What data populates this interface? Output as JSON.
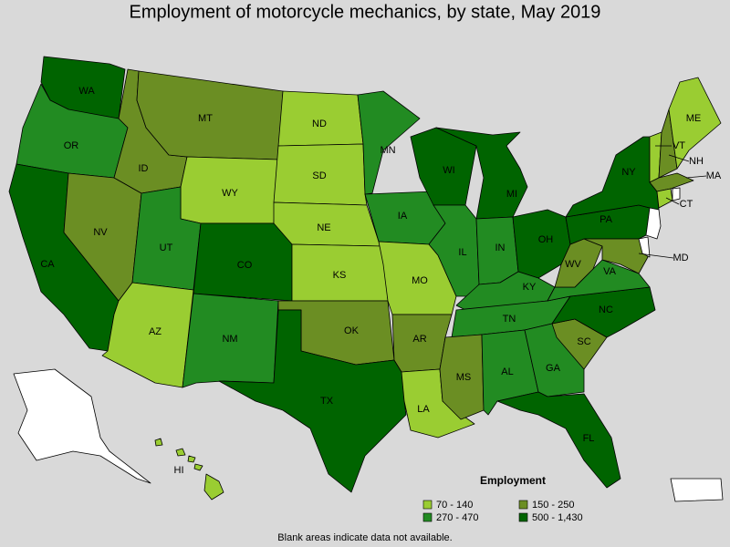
{
  "title": "Employment of motorcycle mechanics, by state, May 2019",
  "legend": {
    "title": "Employment",
    "bins": [
      {
        "label": "70 - 140",
        "color": "#9acd32"
      },
      {
        "label": "270 - 470",
        "color": "#228b22"
      },
      {
        "label": "150 - 250",
        "color": "#6b8e23"
      },
      {
        "label": "500 - 1,430",
        "color": "#006400"
      }
    ]
  },
  "regions": [
    {
      "label": "WA",
      "color": "#006400"
    },
    {
      "label": "OR",
      "color": "#228b22"
    },
    {
      "label": "CA",
      "color": "#006400"
    },
    {
      "label": "NV",
      "color": "#6b8e23"
    },
    {
      "label": "ID",
      "color": "#6b8e23"
    },
    {
      "label": "MT",
      "color": "#6b8e23"
    },
    {
      "label": "WY",
      "color": "#9acd32"
    },
    {
      "label": "UT",
      "color": "#228b22"
    },
    {
      "label": "AZ",
      "color": "#9acd32"
    },
    {
      "label": "CO",
      "color": "#006400"
    },
    {
      "label": "NM",
      "color": "#228b22"
    },
    {
      "label": "ND",
      "color": "#9acd32"
    },
    {
      "label": "SD",
      "color": "#9acd32"
    },
    {
      "label": "NE",
      "color": "#9acd32"
    },
    {
      "label": "KS",
      "color": "#9acd32"
    },
    {
      "label": "OK",
      "color": "#6b8e23"
    },
    {
      "label": "TX",
      "color": "#006400"
    },
    {
      "label": "MN",
      "color": "#228b22"
    },
    {
      "label": "IA",
      "color": "#228b22"
    },
    {
      "label": "MO",
      "color": "#9acd32"
    },
    {
      "label": "AR",
      "color": "#6b8e23"
    },
    {
      "label": "LA",
      "color": "#9acd32"
    },
    {
      "label": "WI",
      "color": "#006400"
    },
    {
      "label": "IL",
      "color": "#228b22"
    },
    {
      "label": "MI",
      "color": "#006400"
    },
    {
      "label": "IN",
      "color": "#228b22"
    },
    {
      "label": "OH",
      "color": "#006400"
    },
    {
      "label": "KY",
      "color": "#228b22"
    },
    {
      "label": "TN",
      "color": "#228b22"
    },
    {
      "label": "MS",
      "color": "#6b8e23"
    },
    {
      "label": "AL",
      "color": "#228b22"
    },
    {
      "label": "GA",
      "color": "#228b22"
    },
    {
      "label": "FL",
      "color": "#006400"
    },
    {
      "label": "SC",
      "color": "#6b8e23"
    },
    {
      "label": "NC",
      "color": "#006400"
    },
    {
      "label": "VA",
      "color": "#228b22"
    },
    {
      "label": "WV",
      "color": "#6b8e23"
    },
    {
      "label": "PA",
      "color": "#006400"
    },
    {
      "label": "NY",
      "color": "#006400"
    },
    {
      "label": "MD",
      "color": "#6b8e23"
    },
    {
      "label": "VT",
      "color": "#9acd32"
    },
    {
      "label": "NH",
      "color": "#6b8e23"
    },
    {
      "label": "ME",
      "color": "#9acd32"
    },
    {
      "label": "MA",
      "color": "#6b8e23"
    },
    {
      "label": "CT",
      "color": "#9acd32"
    },
    {
      "label": "HI",
      "color": "#9acd32"
    },
    {
      "color": "#ffffff"
    },
    {
      "color": "#ffffff"
    },
    {
      "color": "#ffffff"
    },
    {
      "color": "#ffffff"
    },
    {
      "color": "#ffffff"
    }
  ],
  "footnote": "Blank areas indicate data not available."
}
